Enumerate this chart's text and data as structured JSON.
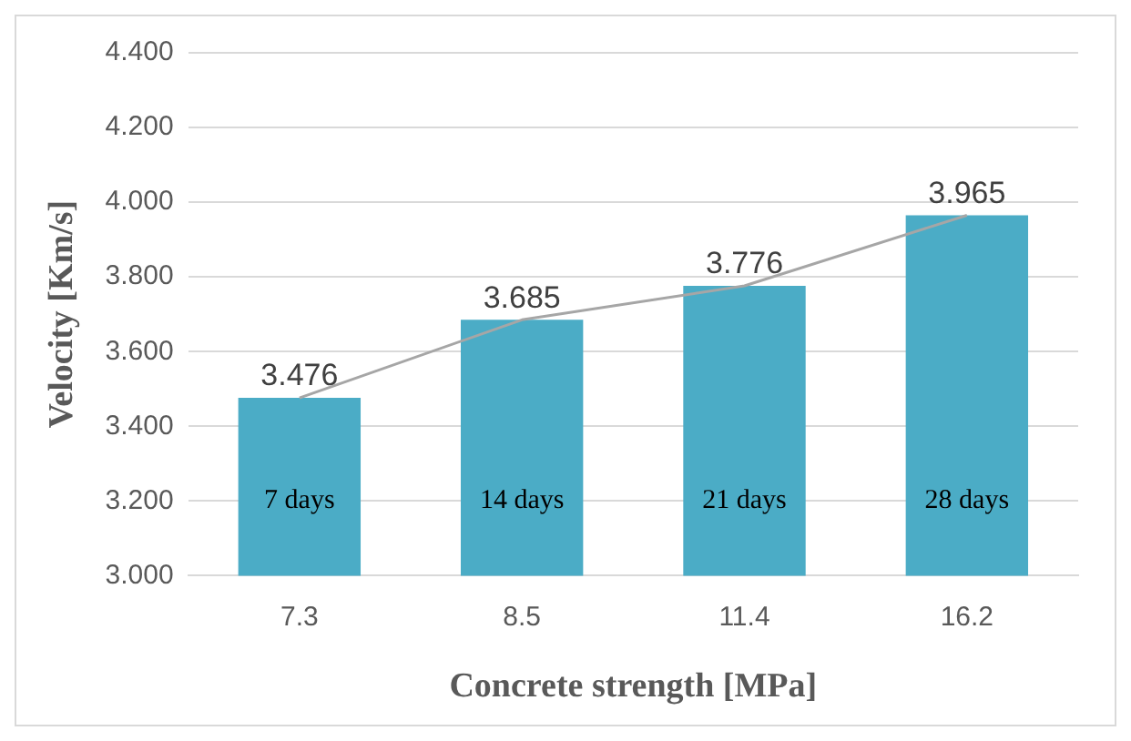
{
  "chart_data": {
    "type": "bar",
    "xlabel": "Concrete strength [MPa]",
    "ylabel": "Velocity [Km/s]",
    "categories": [
      "7.3",
      "8.5",
      "11.4",
      "16.2"
    ],
    "series": [
      {
        "color": "#4bacc6",
        "values": [
          3.476,
          3.685,
          3.776,
          3.965
        ],
        "value_labels": [
          "3.476",
          "3.685",
          "3.776",
          "3.965"
        ]
      },
      {
        "type": "line",
        "color": "#a6a6a6",
        "values": [
          3.476,
          3.685,
          3.776,
          3.965
        ]
      }
    ],
    "marker": "none",
    "grid": "y",
    "legend": false,
    "ylim": [
      3,
      4.4
    ],
    "yticks": [
      {
        "value": 3,
        "label": "3.000"
      },
      {
        "value": 3.2,
        "label": "3.200"
      },
      {
        "value": 3.4,
        "label": "3.400"
      },
      {
        "value": 3.6,
        "label": "3.600"
      },
      {
        "value": 3.8,
        "label": "3.800"
      },
      {
        "value": 4,
        "label": "4.000"
      },
      {
        "value": 4.2,
        "label": "4.200"
      },
      {
        "value": 4.4,
        "label": "4.400"
      }
    ],
    "annotations": [
      "7 days",
      "14 days",
      "21 days",
      "28 days"
    ]
  }
}
